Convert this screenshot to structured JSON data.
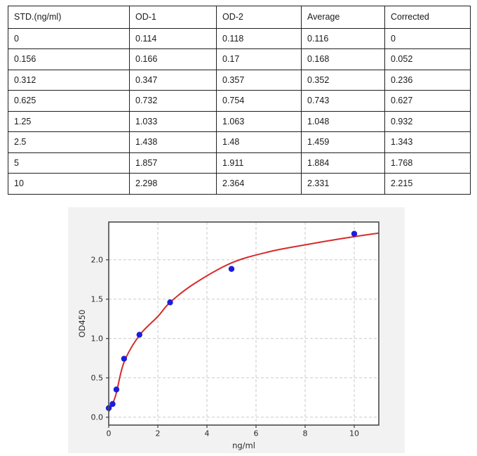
{
  "table": {
    "headers": [
      "STD.(ng/ml)",
      "OD-1",
      "OD-2",
      "Average",
      "Corrected"
    ],
    "rows": [
      [
        "0",
        "0.114",
        "0.118",
        "0.116",
        "0"
      ],
      [
        "0.156",
        "0.166",
        "0.17",
        "0.168",
        "0.052"
      ],
      [
        "0.312",
        "0.347",
        "0.357",
        "0.352",
        "0.236"
      ],
      [
        "0.625",
        "0.732",
        "0.754",
        "0.743",
        "0.627"
      ],
      [
        "1.25",
        "1.033",
        "1.063",
        "1.048",
        "0.932"
      ],
      [
        "2.5",
        "1.438",
        "1.48",
        "1.459",
        "1.343"
      ],
      [
        "5",
        "1.857",
        "1.911",
        "1.884",
        "1.768"
      ],
      [
        "10",
        "2.298",
        "2.364",
        "2.331",
        "2.215"
      ]
    ]
  },
  "chart_data": {
    "type": "scatter",
    "title": "",
    "xlabel": "ng/ml",
    "ylabel": "OD450",
    "xlim": [
      0,
      11
    ],
    "ylim": [
      -0.1,
      2.48
    ],
    "grid": true,
    "x_ticks": [
      0,
      2,
      4,
      6,
      8,
      10
    ],
    "x_tick_labels": [
      "0",
      "2",
      "4",
      "6",
      "8",
      "10"
    ],
    "y_ticks": [
      0.0,
      0.5,
      1.0,
      1.5,
      2.0
    ],
    "y_tick_labels": [
      "0.0",
      "0.5",
      "1.0",
      "1.5",
      "2.0"
    ],
    "points": [
      [
        0,
        0.116
      ],
      [
        0.156,
        0.168
      ],
      [
        0.312,
        0.352
      ],
      [
        0.625,
        0.743
      ],
      [
        1.25,
        1.048
      ],
      [
        2.5,
        1.459
      ],
      [
        5,
        1.884
      ],
      [
        10,
        2.331
      ]
    ],
    "fit_curve": [
      [
        0,
        0.07
      ],
      [
        0.156,
        0.17
      ],
      [
        0.312,
        0.31
      ],
      [
        0.625,
        0.7
      ],
      [
        1.25,
        1.04
      ],
      [
        2.0,
        1.28
      ],
      [
        2.5,
        1.46
      ],
      [
        3.5,
        1.7
      ],
      [
        5,
        1.96
      ],
      [
        6.5,
        2.1
      ],
      [
        8,
        2.19
      ],
      [
        9.5,
        2.27
      ],
      [
        11,
        2.34
      ]
    ],
    "colors": {
      "point": "#1c1cdb",
      "curve": "#d62b2b",
      "figure_bg": "#f2f2f2",
      "plot_bg": "#ffffff",
      "spine": "#4a4a4a",
      "grid": "#c9c9c9",
      "tick_text": "#2b2b2b"
    }
  }
}
